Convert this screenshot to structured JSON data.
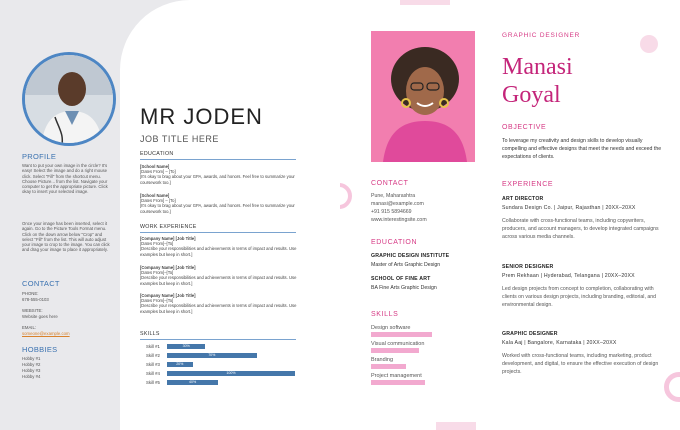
{
  "left": {
    "name": "MR JODEN",
    "job_title": "JOB TITLE HERE",
    "profile": {
      "heading": "PROFILE",
      "p1": "Want to put your own image in the circle? It's easy! Select the image and do a right mouse click. Select \"Fill\" from the shortcut menu. Choose Picture... from the list. Navigate your computer to get the appropriate picture. Click okay to insert your selected image.",
      "p2": "Once your image has been inserted, select it again. Go to the Picture Tools Format menu. Click on the down arrow below \"Crop\" and select \"Fill\" from the list. This will auto adjust your image to crop to the image. You can click and drag your image to place it appropriately."
    },
    "contact": {
      "heading": "CONTACT",
      "phone_label": "PHONE:",
      "phone": "678-555-0103",
      "website_label": "WEBSITE:",
      "website": "Website goes here",
      "email_label": "EMAIL:",
      "email": "someone@example.com"
    },
    "hobbies": {
      "heading": "HOBBIES",
      "items": [
        "Hobby #1",
        "Hobby #2",
        "Hobby #3",
        "Hobby #4"
      ]
    },
    "education": {
      "heading": "EDUCATION",
      "entries": [
        {
          "school": "[School Name]",
          "dates": "[Dates From] – [To]",
          "desc": "[It's okay to brag about your GPA, awards, and honors. Feel free to summarize your coursework too.]"
        },
        {
          "school": "[School Name]",
          "dates": "[Dates From] – [To]",
          "desc": "[It's okay to brag about your GPA, awards, and honors. Feel free to summarize your coursework too.]"
        }
      ]
    },
    "experience": {
      "heading": "WORK EXPERIENCE",
      "entries": [
        {
          "company": "[Company Name] [Job Title]",
          "dates": "[Dates From]–[To]",
          "desc": "[Describe your responsibilities and achievements in terms of impact and results. Use examples but keep in short.]"
        },
        {
          "company": "[Company Name] [Job Title]",
          "dates": "[Dates From]–[To]",
          "desc": "[Describe your responsibilities and achievements in terms of impact and results. Use examples but keep in short.]"
        },
        {
          "company": "[Company Name] [Job Title]",
          "dates": "[Dates From]–[To]",
          "desc": "[Describe your responsibilities and achievements in terms of impact and results. Use examples but keep in short.]"
        }
      ]
    },
    "skills": {
      "heading": "SKILLS",
      "items": [
        {
          "label": "Skill #1",
          "pct": 0.3,
          "text": "30%"
        },
        {
          "label": "Skill #2",
          "pct": 0.7,
          "text": "70%"
        },
        {
          "label": "Skill #3",
          "pct": 0.2,
          "text": "20%"
        },
        {
          "label": "Skill #4",
          "pct": 1.0,
          "text": "100%"
        },
        {
          "label": "Skill #5",
          "pct": 0.4,
          "text": "40%"
        }
      ]
    }
  },
  "right": {
    "role": "GRAPHIC DESIGNER",
    "first_name": "Manasi",
    "last_name": "Goyal",
    "objective": {
      "heading": "OBJECTIVE",
      "text": "To leverage my creativity and design skills to develop visually compelling and effective designs that meet the needs and exceed the expectations of clients."
    },
    "contact": {
      "heading": "CONTACT",
      "lines": [
        "Pune, Maharashtra",
        "manasi@example.com",
        "+91 915 5894669",
        "www.interestingsite.com"
      ]
    },
    "education": {
      "heading": "EDUCATION",
      "entries": [
        {
          "school": "GRAPHIC DESIGN INSTITUTE",
          "degree": "Master of Arts Graphic Design"
        },
        {
          "school": "SCHOOL OF FINE ART",
          "degree": "BA Fine Arts Graphic Design"
        }
      ]
    },
    "skills": {
      "heading": "SKILLS",
      "items": [
        {
          "label": "Design software",
          "level": 0.95
        },
        {
          "label": "Visual communication",
          "level": 0.75
        },
        {
          "label": "Branding",
          "level": 0.55
        },
        {
          "label": "Project management",
          "level": 0.85
        }
      ]
    },
    "experience": {
      "heading": "EXPERIENCE",
      "entries": [
        {
          "title": "ART DIRECTOR",
          "org": "Sundara Design Co.  |  Jaipur, Rajasthan  |  20XX–20XX",
          "desc": "Collaborate with cross-functional teams, including copywriters, producers, and account managers, to develop integrated campaigns across various media channels."
        },
        {
          "title": "SENIOR DESIGNER",
          "org": "Prem Rekhaan  |  Hyderabad, Telangana  |  20XX–20XX",
          "desc": "Led design projects from concept to completion, collaborating with clients on various design projects, including branding, editorial, and environmental design."
        },
        {
          "title": "GRAPHIC DESIGNER",
          "org": "Kala Aaj  |  Bangalore, Karnataka  |  20XX–20XX",
          "desc": "Worked with cross-functional teams, including marketing, product development, and digital, to ensure the effective execution of design projects."
        }
      ]
    }
  },
  "colors": {
    "left_accent": "#3b72b0",
    "left_bar": "#4577aa",
    "right_accent": "#c4257a",
    "right_bar": "#f2a9cf"
  }
}
